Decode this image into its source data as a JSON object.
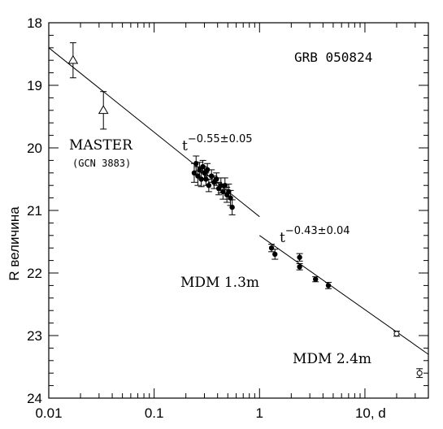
{
  "chart_data": {
    "type": "scatter",
    "title": "GRB 050824",
    "xlabel": "d",
    "ylabel": "R величина",
    "xscale": "log",
    "xlim": [
      0.01,
      40
    ],
    "ylim": [
      24,
      18
    ],
    "y_inverted": true,
    "x_ticks": [
      {
        "value": 0.01,
        "label": "0.01"
      },
      {
        "value": 0.1,
        "label": "0.1"
      },
      {
        "value": 1,
        "label": "1"
      },
      {
        "value": 10,
        "label": "10, d"
      }
    ],
    "y_ticks": [
      {
        "value": 18,
        "label": "18"
      },
      {
        "value": 19,
        "label": "19"
      },
      {
        "value": 20,
        "label": "20"
      },
      {
        "value": 21,
        "label": "21"
      },
      {
        "value": 22,
        "label": "22"
      },
      {
        "value": 23,
        "label": "23"
      },
      {
        "value": 24,
        "label": "24"
      }
    ],
    "series": [
      {
        "name": "MASTER",
        "marker": "open-triangle",
        "points": [
          {
            "x": 0.017,
            "y": 18.6,
            "err": 0.28
          },
          {
            "x": 0.033,
            "y": 19.4,
            "err": 0.3
          }
        ]
      },
      {
        "name": "MDM 1.3m",
        "marker": "filled-circle",
        "points": [
          {
            "x": 0.24,
            "y": 20.4,
            "err": 0.15
          },
          {
            "x": 0.25,
            "y": 20.25,
            "err": 0.12
          },
          {
            "x": 0.26,
            "y": 20.45,
            "err": 0.15
          },
          {
            "x": 0.27,
            "y": 20.35,
            "err": 0.12
          },
          {
            "x": 0.28,
            "y": 20.5,
            "err": 0.12
          },
          {
            "x": 0.29,
            "y": 20.3,
            "err": 0.1
          },
          {
            "x": 0.3,
            "y": 20.4,
            "err": 0.1
          },
          {
            "x": 0.31,
            "y": 20.5,
            "err": 0.1
          },
          {
            "x": 0.32,
            "y": 20.35,
            "err": 0.1
          },
          {
            "x": 0.33,
            "y": 20.6,
            "err": 0.1
          },
          {
            "x": 0.35,
            "y": 20.45,
            "err": 0.1
          },
          {
            "x": 0.37,
            "y": 20.55,
            "err": 0.1
          },
          {
            "x": 0.39,
            "y": 20.5,
            "err": 0.1
          },
          {
            "x": 0.41,
            "y": 20.65,
            "err": 0.1
          },
          {
            "x": 0.43,
            "y": 20.6,
            "err": 0.12
          },
          {
            "x": 0.45,
            "y": 20.7,
            "err": 0.12
          },
          {
            "x": 0.47,
            "y": 20.6,
            "err": 0.12
          },
          {
            "x": 0.49,
            "y": 20.75,
            "err": 0.12
          },
          {
            "x": 0.51,
            "y": 20.7,
            "err": 0.12
          },
          {
            "x": 0.53,
            "y": 20.8,
            "err": 0.12
          },
          {
            "x": 0.55,
            "y": 20.95,
            "err": 0.12
          },
          {
            "x": 1.3,
            "y": 21.6,
            "err": 0.06
          },
          {
            "x": 1.4,
            "y": 21.7,
            "err": 0.08
          },
          {
            "x": 2.4,
            "y": 21.75,
            "err": 0.06
          },
          {
            "x": 2.4,
            "y": 21.9,
            "err": 0.05
          },
          {
            "x": 3.4,
            "y": 22.1,
            "err": 0.04
          },
          {
            "x": 4.5,
            "y": 22.2,
            "err": 0.05
          }
        ]
      },
      {
        "name": "MDM 2.4m",
        "marker": "open-circle",
        "points": [
          {
            "x": 20,
            "y": 22.97,
            "err": 0.04
          },
          {
            "x": 33,
            "y": 23.6,
            "err": 0.07
          }
        ]
      }
    ],
    "fit_lines": [
      {
        "x_start": 0.01,
        "y_start": 18.4,
        "x_end": 1.0,
        "y_end": 21.1,
        "label": "t",
        "exponent": "−0.55±0.05"
      },
      {
        "x_start": 1.0,
        "y_start": 21.4,
        "x_end": 40,
        "y_end": 23.3,
        "label": "t",
        "exponent": "−0.43±0.04"
      }
    ],
    "annotations": {
      "grb": "GRB 050824",
      "master": "MASTER",
      "gcn": "(GCN 3883)",
      "mdm13": "MDM 1.3m",
      "mdm24": "MDM 2.4m"
    },
    "grid": false,
    "legend": "none"
  }
}
